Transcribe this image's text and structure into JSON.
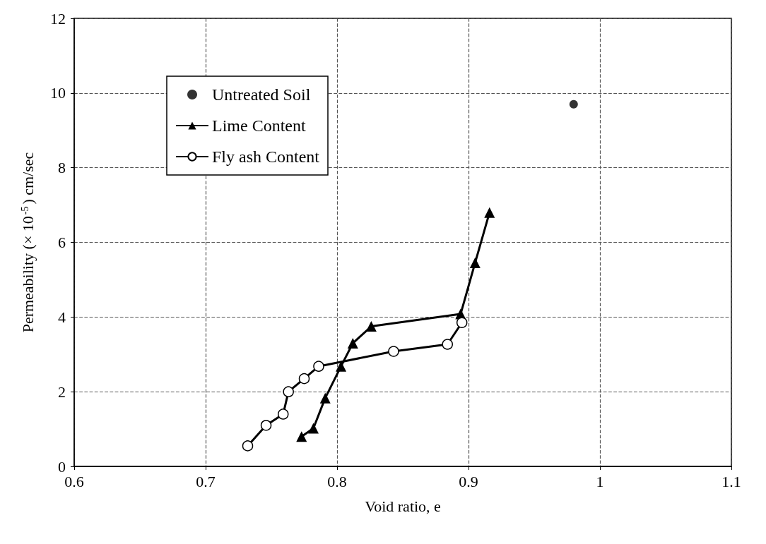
{
  "chart_data": {
    "type": "line",
    "xlabel": "Void ratio, e",
    "ylabel": "Permeability (× 10$^{-5}$) cm/sec",
    "xlim": [
      0.6,
      1.1
    ],
    "xticks": [
      0.6,
      0.7,
      0.8,
      0.9,
      1,
      1.1
    ],
    "ylim": [
      0,
      12
    ],
    "yticks": [
      0,
      2,
      4,
      6,
      8,
      10,
      12
    ],
    "grid": true,
    "legend": "top left",
    "series": [
      {
        "name": "Untreated Soil",
        "type": "scatter",
        "marker": "circle",
        "color": "#000000",
        "x": [
          0.98
        ],
        "values": [
          9.7
        ]
      },
      {
        "name": "Lime Content",
        "marker": "triangle",
        "line_style": "solid",
        "color": "#000000",
        "x": [
          0.773,
          0.782,
          0.791,
          0.803,
          0.812,
          0.826,
          0.894,
          0.905,
          0.916
        ],
        "values": [
          0.8,
          1.02,
          1.83,
          2.68,
          3.3,
          3.75,
          4.08,
          5.45,
          6.8
        ]
      },
      {
        "name": "Fly ash Content",
        "marker": "circle",
        "line_style": "solid",
        "color": "#000000",
        "x": [
          0.732,
          0.746,
          0.759,
          0.763,
          0.775,
          0.786,
          0.843,
          0.884,
          0.895
        ],
        "values": [
          0.55,
          1.1,
          1.4,
          2.0,
          2.35,
          2.68,
          3.08,
          3.27,
          3.85
        ]
      }
    ]
  }
}
